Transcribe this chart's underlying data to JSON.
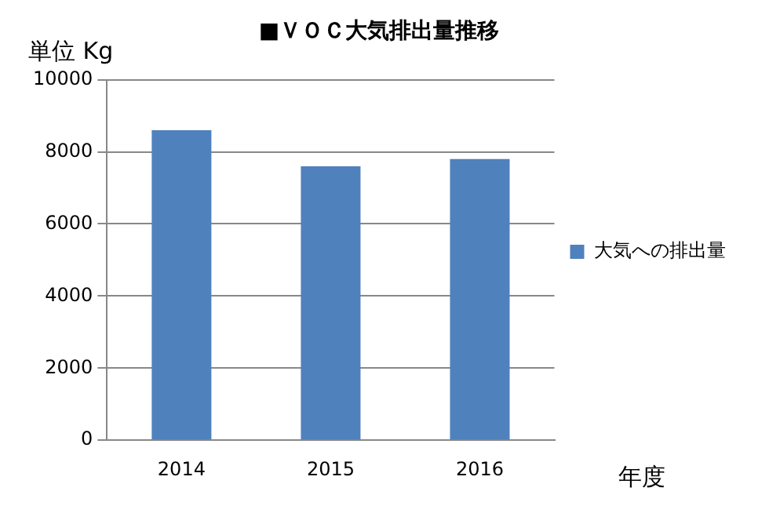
{
  "chart_data": {
    "type": "bar",
    "title": "■ＶＯＣ大気排出量推移",
    "ylabel": "単位 Kg",
    "xlabel": "年度",
    "categories": [
      "2014",
      "2015",
      "2016"
    ],
    "series": [
      {
        "name": "大気への排出量",
        "color": "#4f81bd",
        "values": [
          8600,
          7600,
          7800
        ]
      }
    ],
    "ylim": [
      0,
      10000
    ],
    "yticks": [
      0,
      2000,
      4000,
      6000,
      8000,
      10000
    ],
    "grid": "y",
    "legend": "right"
  }
}
